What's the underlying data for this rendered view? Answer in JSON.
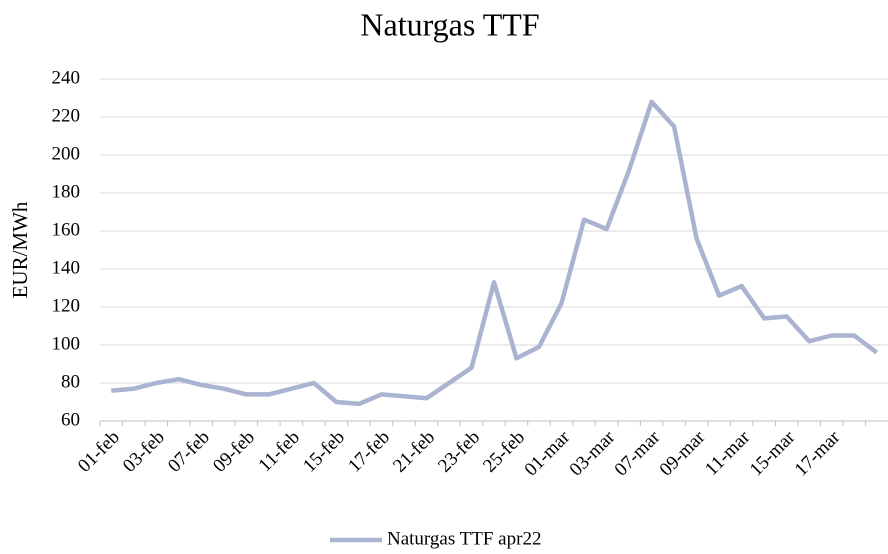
{
  "chart_data": {
    "type": "line",
    "title": "Naturgas TTF",
    "ylabel": "EUR/MWh",
    "categories": [
      "01-feb",
      null,
      "03-feb",
      null,
      "07-feb",
      null,
      "09-feb",
      null,
      "11-feb",
      null,
      "15-feb",
      null,
      "17-feb",
      null,
      "21-feb",
      null,
      "23-feb",
      null,
      "25-feb",
      null,
      "01-mar",
      null,
      "03-mar",
      null,
      "07-mar",
      null,
      "09-mar",
      null,
      "11-mar",
      null,
      "15-mar",
      null,
      "17-mar",
      null,
      null
    ],
    "series": [
      {
        "name": "Naturgas TTF apr22",
        "color": "#aab3cf",
        "values": [
          76,
          77,
          80,
          82,
          79,
          77,
          74,
          74,
          77,
          80,
          70,
          69,
          74,
          73,
          72,
          80,
          88,
          133,
          93,
          99,
          122,
          166,
          161,
          192,
          228,
          215,
          156,
          126,
          131,
          114,
          115,
          102,
          105,
          105,
          96
        ]
      }
    ],
    "ylim": [
      60,
      240
    ],
    "yticks": [
      60,
      80,
      100,
      120,
      140,
      160,
      180,
      200,
      220,
      240
    ],
    "grid": true,
    "legend": "bottom"
  }
}
